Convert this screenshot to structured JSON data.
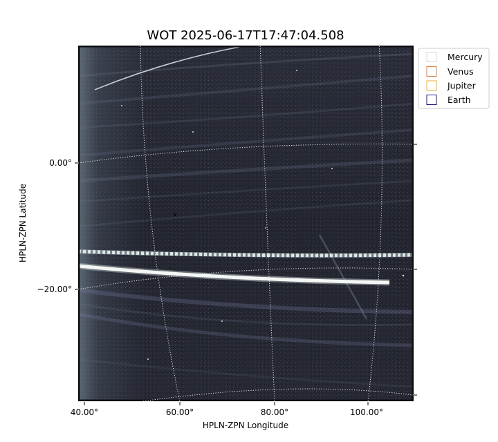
{
  "chart_data": {
    "type": "image",
    "title": "WOT 2025-06-17T17:47:04.508",
    "xlabel": "HPLN-ZPN Longitude",
    "ylabel": "HPLN-ZPN Latitude",
    "x_ticks": [
      "40.00°",
      "60.00°",
      "80.00°",
      "100.00°"
    ],
    "y_ticks": [
      "0.00°",
      "−20.00°"
    ],
    "grid": true,
    "grid_style": "dotted",
    "colormap": "bone",
    "legend": {
      "placement": "outside-top-right",
      "entries": [
        {
          "name": "Mercury",
          "color": "#d9d9d9"
        },
        {
          "name": "Venus",
          "color": "#e07b39"
        },
        {
          "name": "Jupiter",
          "color": "#e8b020"
        },
        {
          "name": "Earth",
          "color": "#1a1a7a"
        }
      ]
    }
  }
}
